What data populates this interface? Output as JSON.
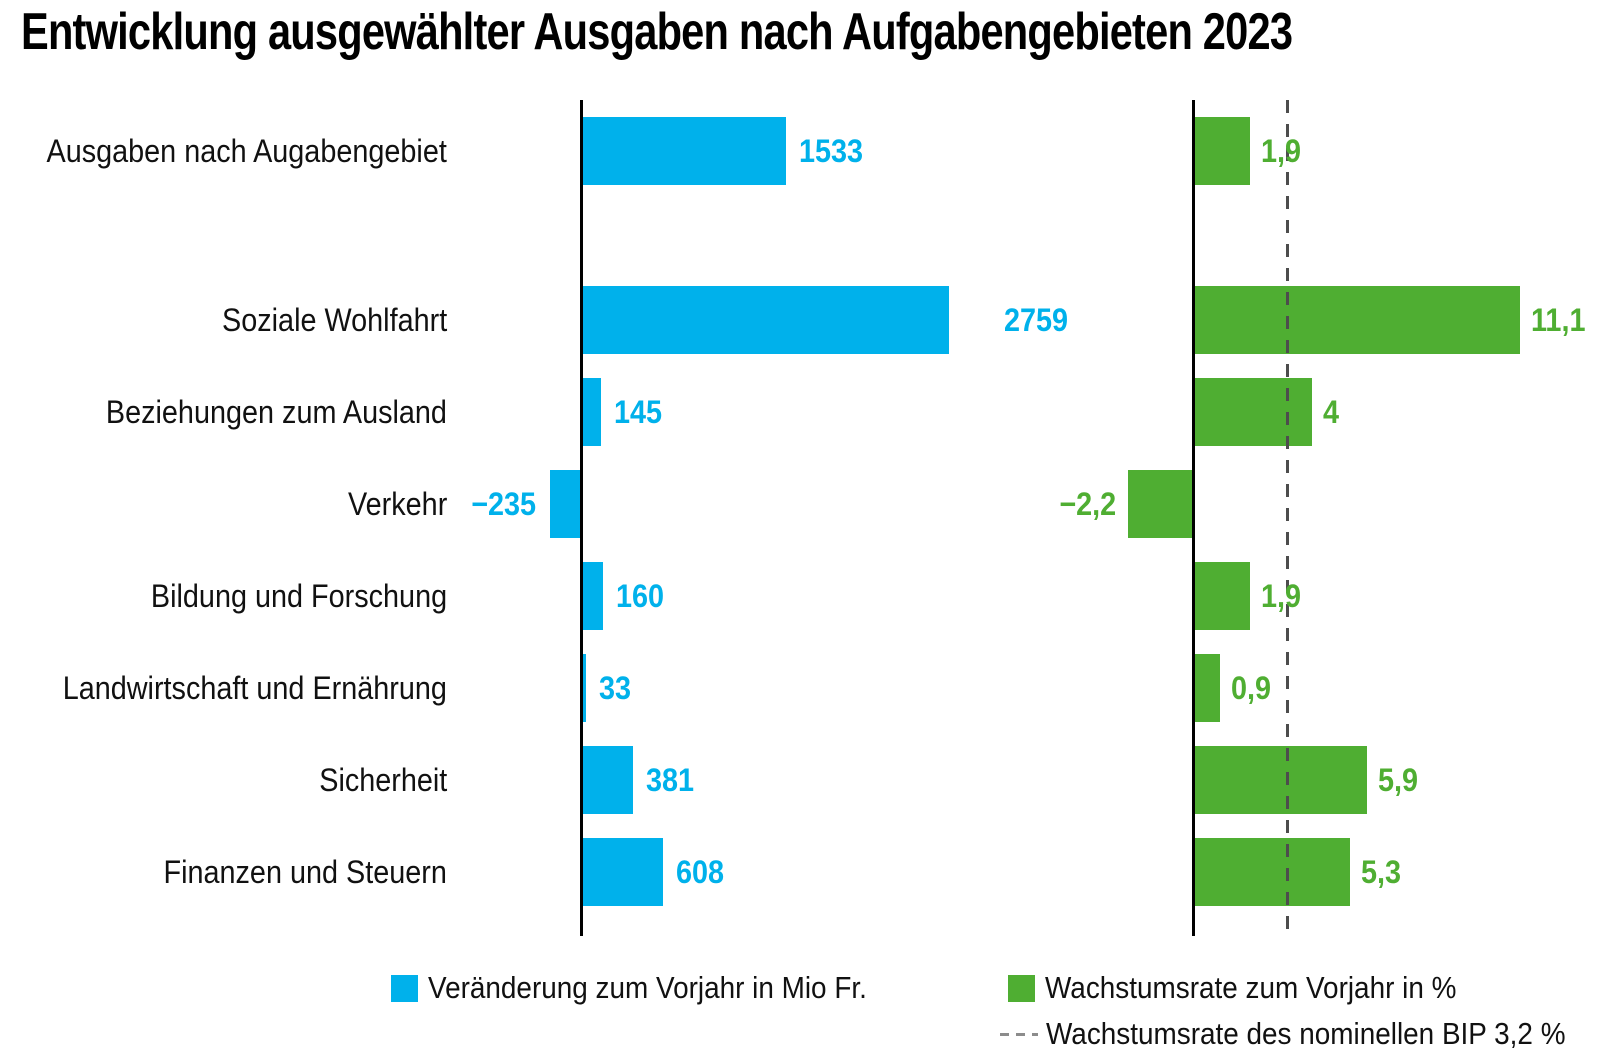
{
  "title": "Entwicklung ausgewählter Ausgaben nach Aufgabengebieten 2023",
  "chart_data": {
    "type": "bar",
    "orientation": "horizontal",
    "title": "Entwicklung ausgewählter Ausgaben nach Aufgabengebieten 2023",
    "categories": [
      "Ausgaben nach Augabengebiet",
      "Soziale Wohlfahrt",
      "Beziehungen zum Ausland",
      "Verkehr",
      "Bildung und Forschung",
      "Landwirtschaft und Ernährung",
      "Sicherheit",
      "Finanzen und Steuern"
    ],
    "series": [
      {
        "name": "Veränderung zum Vorjahr in Mio Fr.",
        "unit": "Mio Fr.",
        "color": "#00b1eb",
        "values": [
          1533,
          2759,
          145,
          -235,
          160,
          33,
          381,
          608
        ],
        "value_labels": [
          "1533",
          "2759",
          "145",
          "−235",
          "160",
          "33",
          "381",
          "608"
        ]
      },
      {
        "name": "Wachstumsrate zum Vorjahr in %",
        "unit": "%",
        "color": "#4fae32",
        "values": [
          1.9,
          11.1,
          4,
          -2.2,
          1.9,
          0.9,
          5.9,
          5.3
        ],
        "value_labels": [
          "1,9",
          "11,1",
          "4",
          "−2,2",
          "1,9",
          "0,9",
          "5,9",
          "5,3"
        ]
      }
    ],
    "reference_line": {
      "name": "Wachstumsrate des nominellen BIP 3,2 %",
      "value": 3.2,
      "applies_to_series": 1,
      "style": "dashed",
      "color": "#4d4d4d"
    },
    "layout": {
      "panels": 2,
      "category_label_side": "left",
      "value_labels_shown": true,
      "grid": false,
      "legend_position": "bottom"
    }
  },
  "legend": {
    "items": [
      {
        "label": "Veränderung zum Vorjahr in Mio Fr.",
        "marker": "square",
        "swatch_color": "#00b1eb"
      },
      {
        "label": "Wachstumsrate zum Vorjahr in %",
        "marker": "square",
        "swatch_color": "#4fae32"
      },
      {
        "label": "Wachstumsrate des nominellen BIP 3,2 %",
        "marker": "dashed-line",
        "line_color": "#8c8c8c"
      }
    ]
  }
}
